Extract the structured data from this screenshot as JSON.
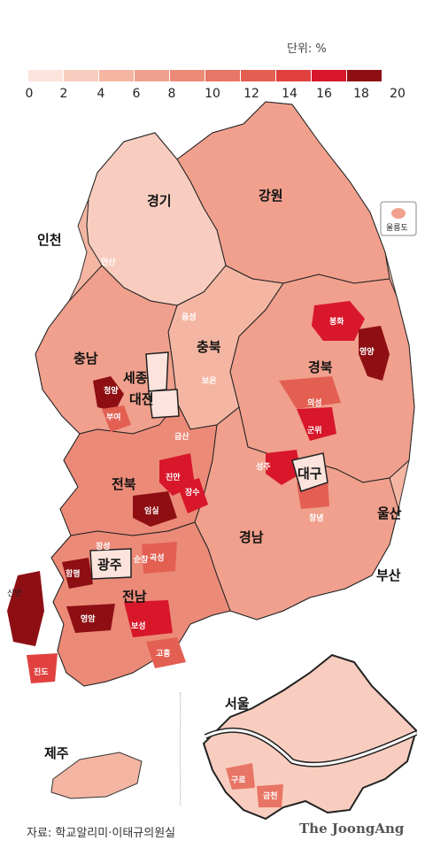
{
  "unit_label": "단위: %",
  "legend": {
    "ticks": [
      "0",
      "2",
      "4",
      "6",
      "8",
      "10",
      "12",
      "14",
      "16",
      "18",
      "20"
    ],
    "colors": [
      "#fce4dc",
      "#f8cdbf",
      "#f4b6a3",
      "#f0a08d",
      "#ec8a78",
      "#e87565",
      "#e35f52",
      "#e0413f",
      "#d8172a",
      "#8e0f13"
    ]
  },
  "regions": {
    "gyeonggi": "경기",
    "gangwon": "강원",
    "incheon": "인천",
    "chungnam": "충남",
    "chungbuk": "충북",
    "sejong": "세종",
    "daejeon": "대전",
    "gyeongbuk": "경북",
    "daegu": "대구",
    "jeonbuk": "전북",
    "jeonnam": "전남",
    "gwangju": "광주",
    "gyeongnam": "경남",
    "ulsan": "울산",
    "busan": "부산",
    "jeju": "제주",
    "seoul": "서울",
    "ulleungdo": "울릉도"
  },
  "districts": {
    "ansan": "안산",
    "eumseong": "음성",
    "boeun": "보은",
    "bonghwa": "봉화",
    "yeongyang": "영양",
    "cheongyang": "청양",
    "buyeo": "부여",
    "geumsan": "금산",
    "uiseong": "의성",
    "gunwi": "군위",
    "seongju": "성주",
    "jinan": "진안",
    "jangsu": "장수",
    "imsil": "임실",
    "changnyeong": "창녕",
    "jangseong": "장성",
    "sunchang": "순창",
    "gokseong": "곡성",
    "hampyeong": "함평",
    "sinan": "신안",
    "yeongam": "영암",
    "boseong": "보성",
    "goheung": "고흥",
    "jindo": "진도",
    "guro": "구로",
    "geumcheon": "금천"
  },
  "source": "자료: 학교알리미·이태규의원실",
  "brand": "The JoongAng"
}
